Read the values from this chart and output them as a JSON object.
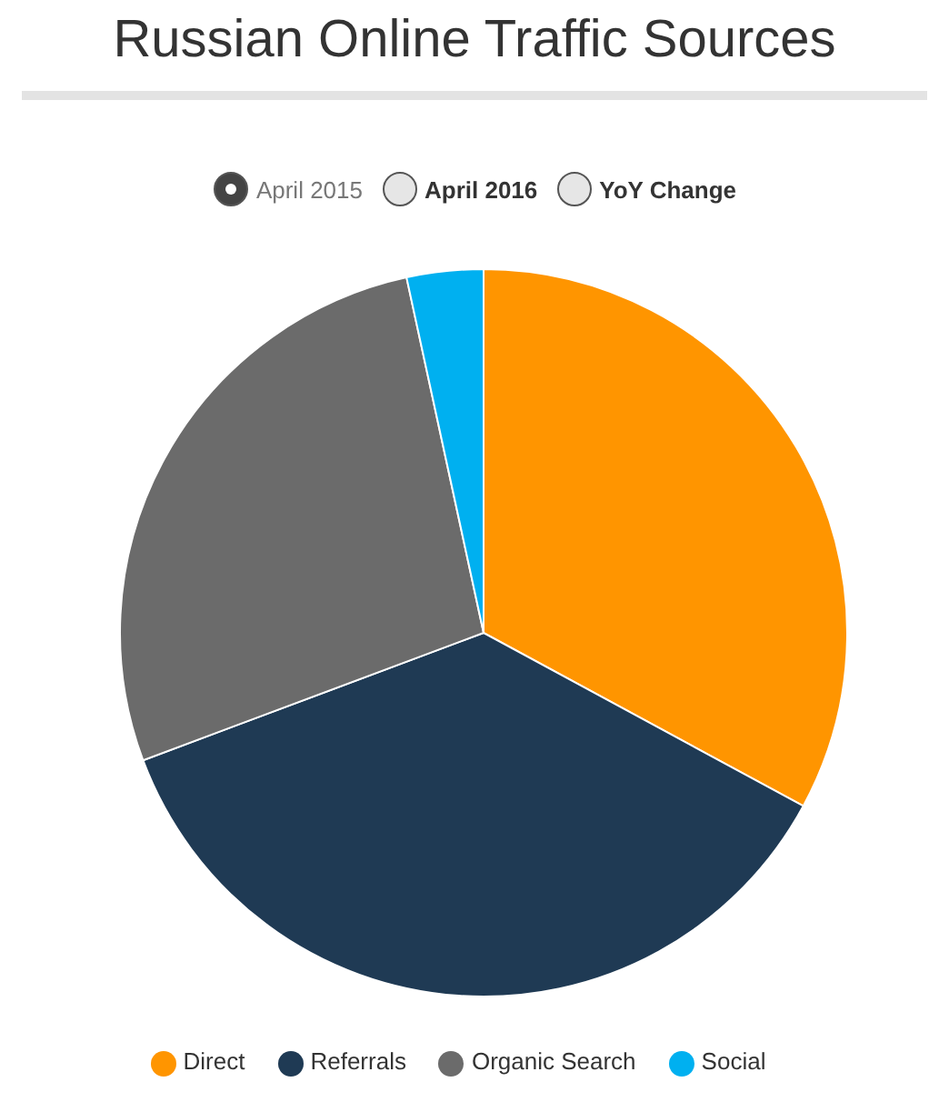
{
  "chart_data": {
    "type": "pie",
    "title": "Russian Online Traffic Sources",
    "categories": [
      "Direct",
      "Referrals",
      "Organic Search",
      "Social"
    ],
    "values": [
      32.9,
      36.4,
      27.3,
      3.4
    ],
    "colors": [
      "#ff9500",
      "#1f3a54",
      "#6b6b6b",
      "#00b0f0"
    ],
    "legend": "bottom",
    "annotations": [
      "April 2015",
      "April 2016",
      "YoY Change"
    ]
  }
}
